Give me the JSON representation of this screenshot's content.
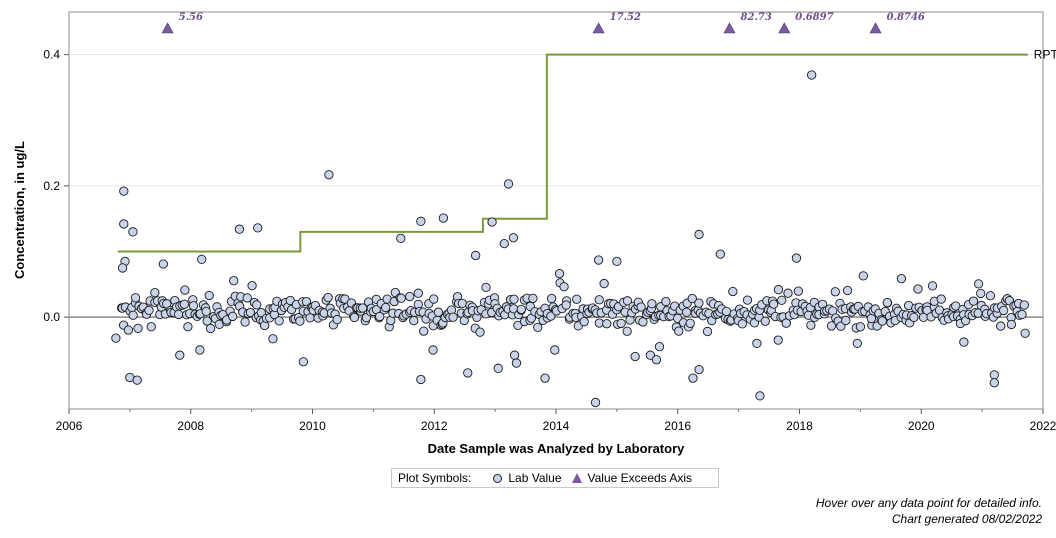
{
  "chart_data": {
    "type": "scatter",
    "xlabel": "Date Sample was Analyzed by Laboratory",
    "ylabel": "Concentration, in ug/L",
    "xlim": [
      2006,
      2022
    ],
    "ylim": [
      -0.14,
      0.465
    ],
    "x_ticks": [
      "2006",
      "2008",
      "2010",
      "2012",
      "2014",
      "2016",
      "2018",
      "2020",
      "2022"
    ],
    "y_ticks": [
      "0.0",
      "0.2",
      "0.4"
    ],
    "zero_line": true,
    "colors": {
      "point_fill": "#c9d4ea",
      "point_stroke": "#1a1a1a",
      "rpt_line": "#7a9a3a",
      "exceed_marker": "#7a5aa0",
      "zero_line": "#888888"
    },
    "rpt_level": {
      "name": "RPT Level",
      "steps": [
        {
          "x_start": 2006.8,
          "x_end": 2009.8,
          "value": 0.1
        },
        {
          "x_start": 2009.8,
          "x_end": 2012.8,
          "value": 0.13
        },
        {
          "x_start": 2012.8,
          "x_end": 2013.85,
          "value": 0.15
        },
        {
          "x_start": 2013.85,
          "x_end": 2021.75,
          "value": 0.4
        }
      ]
    },
    "exceeds_axis": [
      {
        "x": 2007.62,
        "label": "5.56"
      },
      {
        "x": 2014.7,
        "label": "17.52"
      },
      {
        "x": 2016.85,
        "label": "82.73"
      },
      {
        "x": 2017.75,
        "label": "0.6897"
      },
      {
        "x": 2019.25,
        "label": "0.8746"
      }
    ],
    "outliers": [
      {
        "x": 2006.9,
        "y": 0.192
      },
      {
        "x": 2006.9,
        "y": 0.142
      },
      {
        "x": 2007.05,
        "y": 0.13
      },
      {
        "x": 2006.92,
        "y": 0.085
      },
      {
        "x": 2006.88,
        "y": 0.075
      },
      {
        "x": 2007.55,
        "y": 0.081
      },
      {
        "x": 2008.18,
        "y": 0.088
      },
      {
        "x": 2008.8,
        "y": 0.134
      },
      {
        "x": 2009.1,
        "y": 0.136
      },
      {
        "x": 2010.27,
        "y": 0.217
      },
      {
        "x": 2011.45,
        "y": 0.12
      },
      {
        "x": 2011.78,
        "y": 0.146
      },
      {
        "x": 2012.15,
        "y": 0.151
      },
      {
        "x": 2012.95,
        "y": 0.145
      },
      {
        "x": 2013.22,
        "y": 0.203
      },
      {
        "x": 2013.3,
        "y": 0.121
      },
      {
        "x": 2013.15,
        "y": 0.112
      },
      {
        "x": 2012.68,
        "y": 0.094
      },
      {
        "x": 2016.35,
        "y": 0.126
      },
      {
        "x": 2016.7,
        "y": 0.096
      },
      {
        "x": 2018.2,
        "y": 0.369
      },
      {
        "x": 2017.95,
        "y": 0.09
      },
      {
        "x": 2014.7,
        "y": 0.087
      },
      {
        "x": 2015.0,
        "y": 0.085
      },
      {
        "x": 2007.0,
        "y": -0.092
      },
      {
        "x": 2007.12,
        "y": -0.096
      },
      {
        "x": 2007.82,
        "y": -0.058
      },
      {
        "x": 2008.15,
        "y": -0.05
      },
      {
        "x": 2009.85,
        "y": -0.068
      },
      {
        "x": 2011.78,
        "y": -0.095
      },
      {
        "x": 2011.98,
        "y": -0.05
      },
      {
        "x": 2012.55,
        "y": -0.085
      },
      {
        "x": 2013.05,
        "y": -0.078
      },
      {
        "x": 2013.32,
        "y": -0.058
      },
      {
        "x": 2013.35,
        "y": -0.07
      },
      {
        "x": 2013.82,
        "y": -0.093
      },
      {
        "x": 2013.98,
        "y": -0.05
      },
      {
        "x": 2014.65,
        "y": -0.13
      },
      {
        "x": 2015.3,
        "y": -0.06
      },
      {
        "x": 2015.55,
        "y": -0.058
      },
      {
        "x": 2015.65,
        "y": -0.065
      },
      {
        "x": 2015.7,
        "y": -0.045
      },
      {
        "x": 2016.35,
        "y": -0.08
      },
      {
        "x": 2016.25,
        "y": -0.093
      },
      {
        "x": 2017.35,
        "y": -0.12
      },
      {
        "x": 2017.3,
        "y": -0.04
      },
      {
        "x": 2017.65,
        "y": -0.035
      },
      {
        "x": 2018.95,
        "y": -0.04
      },
      {
        "x": 2021.2,
        "y": -0.088
      },
      {
        "x": 2021.2,
        "y": -0.1
      },
      {
        "x": 2006.77,
        "y": -0.032
      },
      {
        "x": 2009.35,
        "y": -0.033
      },
      {
        "x": 2020.7,
        "y": -0.038
      }
    ],
    "cluster": {
      "x_start": 2006.85,
      "x_end": 2021.72,
      "count": 520,
      "center": 0.008,
      "spread": 0.021
    }
  },
  "legend": {
    "title": "Plot Symbols:",
    "items": [
      {
        "label": "Lab Value",
        "symbol": "circle"
      },
      {
        "label": "Value Exceeds Axis",
        "symbol": "triangle"
      }
    ]
  },
  "footnotes": {
    "hover": "Hover over any data point for detailed info.",
    "generated": "Chart generated 08/02/2022"
  }
}
